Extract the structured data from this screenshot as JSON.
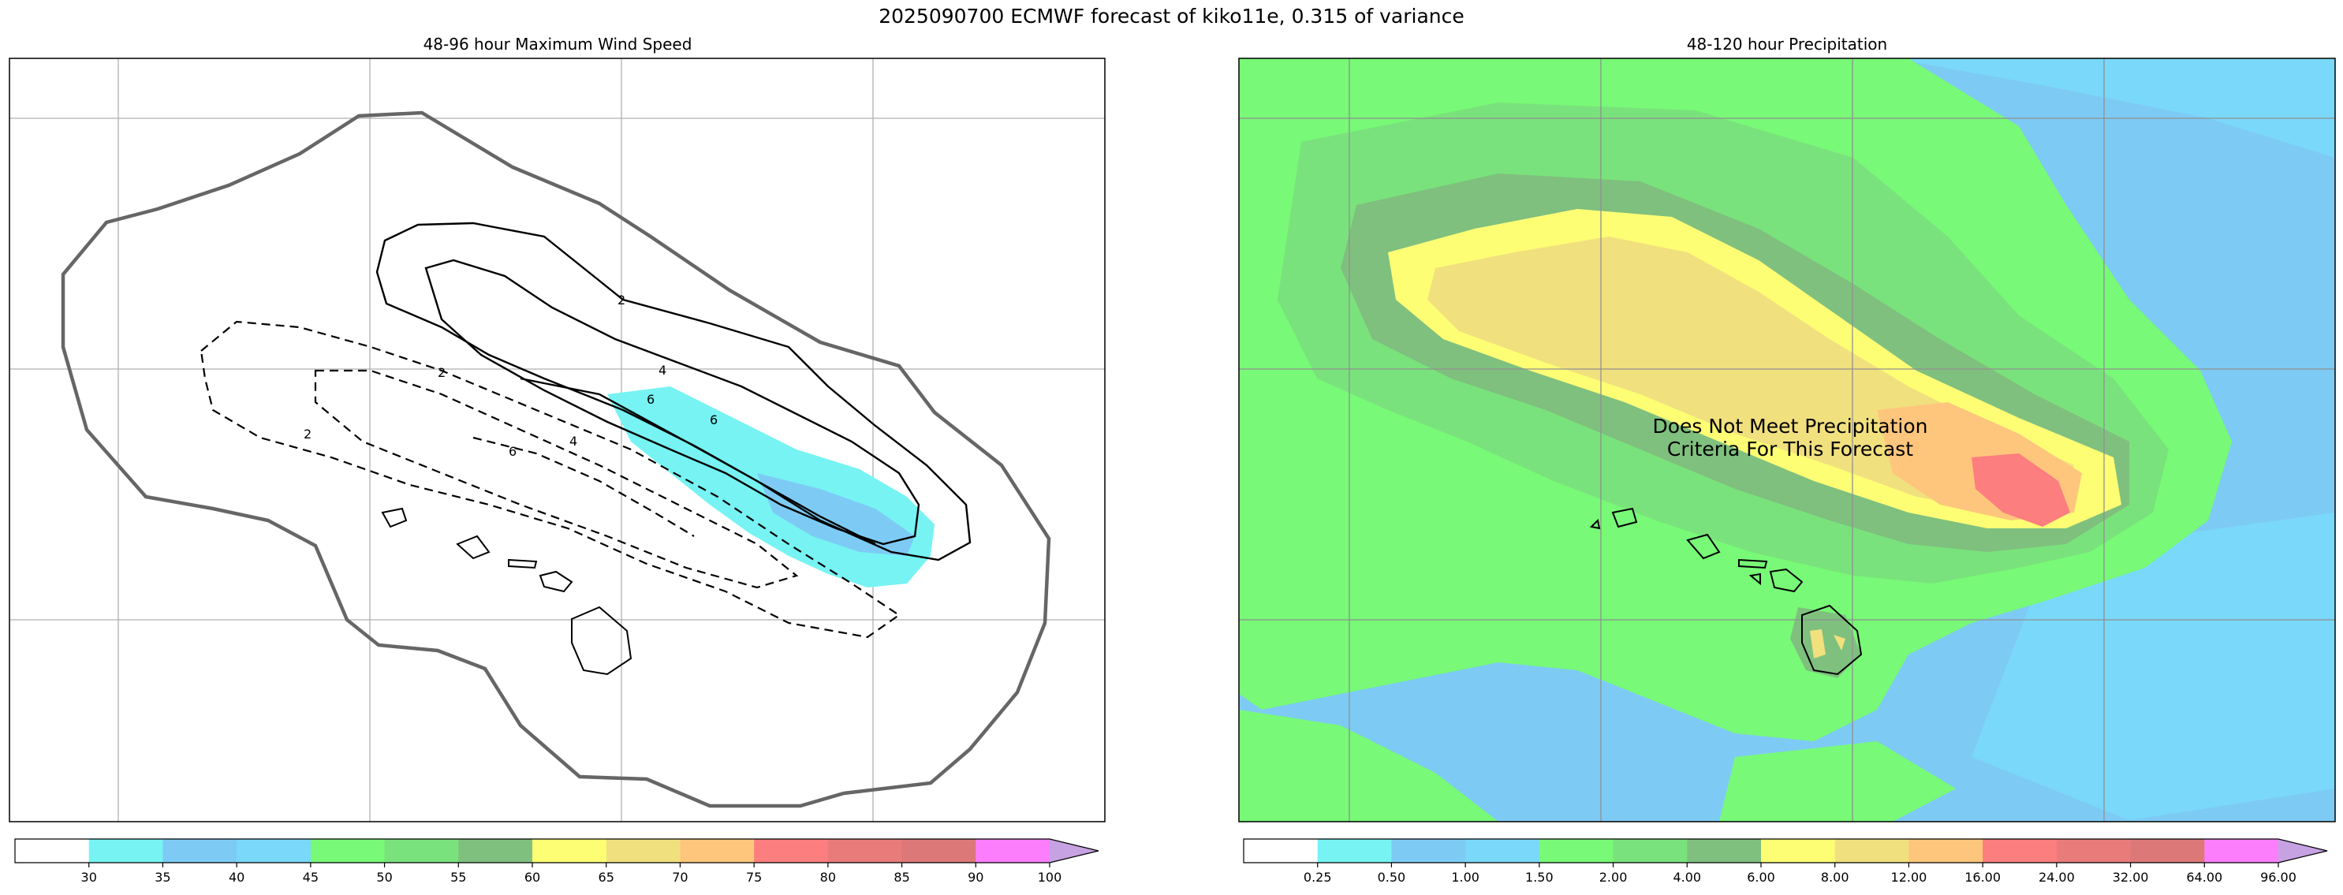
{
  "suptitle": "2025090700 ECMWF forecast of kiko11e, 0.315 of variance",
  "chart_data": [
    {
      "type": "contour",
      "title": "48-96 hour Maximum Wind Speed",
      "colorbar": {
        "levels": [
          "30",
          "35",
          "40",
          "45",
          "50",
          "55",
          "60",
          "65",
          "70",
          "75",
          "80",
          "85",
          "90",
          "100"
        ],
        "colors": [
          "#ffffff",
          "#77f3f3",
          "#7dcbf4",
          "#7ad8fb",
          "#78f977",
          "#7ae27c",
          "#7fc07e",
          "#fefe75",
          "#f1e07e",
          "#fec67c",
          "#fc7e7e",
          "#e97b7b",
          "#dd7878",
          "#fd7efd",
          "#c6a2e2"
        ],
        "extend": "max"
      },
      "contour_labels": [
        "2",
        "4",
        "6",
        "2",
        "4",
        "6",
        "2",
        "6"
      ],
      "grid": true
    },
    {
      "type": "contour",
      "title": "48-120 hour Precipitation",
      "colorbar": {
        "levels": [
          "0.25",
          "0.50",
          "1.00",
          "1.50",
          "2.00",
          "4.00",
          "6.00",
          "8.00",
          "12.00",
          "16.00",
          "24.00",
          "32.00",
          "64.00",
          "96.00"
        ],
        "colors": [
          "#ffffff",
          "#77f3f3",
          "#7dcbf4",
          "#7ad8fb",
          "#78f977",
          "#7ae27c",
          "#7fc07e",
          "#fefe75",
          "#f1e07e",
          "#fec67c",
          "#fc7e7e",
          "#e97b7b",
          "#dd7878",
          "#fd7efd",
          "#c6a2e2"
        ],
        "extend": "max"
      },
      "annotation": [
        "Does Not Meet Precipitation",
        "Criteria For This Forecast"
      ],
      "grid": true
    }
  ]
}
